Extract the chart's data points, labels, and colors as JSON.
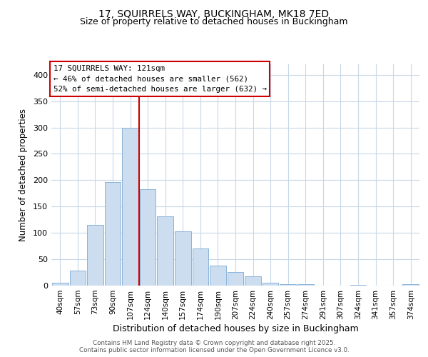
{
  "title1": "17, SQUIRRELS WAY, BUCKINGHAM, MK18 7ED",
  "title2": "Size of property relative to detached houses in Buckingham",
  "xlabel": "Distribution of detached houses by size in Buckingham",
  "ylabel": "Number of detached properties",
  "bar_labels": [
    "40sqm",
    "57sqm",
    "73sqm",
    "90sqm",
    "107sqm",
    "124sqm",
    "140sqm",
    "157sqm",
    "174sqm",
    "190sqm",
    "207sqm",
    "224sqm",
    "240sqm",
    "257sqm",
    "274sqm",
    "291sqm",
    "307sqm",
    "324sqm",
    "341sqm",
    "357sqm",
    "374sqm"
  ],
  "bar_values": [
    5,
    28,
    115,
    197,
    300,
    183,
    132,
    103,
    70,
    38,
    26,
    17,
    6,
    3,
    3,
    0,
    0,
    1,
    0,
    0,
    3
  ],
  "bar_color": "#ccddf0",
  "bar_edge_color": "#8ab4d8",
  "vline_x": 4.5,
  "vline_color": "#cc0000",
  "annotation_text": "17 SQUIRRELS WAY: 121sqm\n← 46% of detached houses are smaller (562)\n52% of semi-detached houses are larger (632) →",
  "annotation_box_color": "#ffffff",
  "annotation_box_edge": "#cc0000",
  "ylim": [
    0,
    420
  ],
  "yticks": [
    0,
    50,
    100,
    150,
    200,
    250,
    300,
    350,
    400
  ],
  "footer1": "Contains HM Land Registry data © Crown copyright and database right 2025.",
  "footer2": "Contains public sector information licensed under the Open Government Licence v3.0.",
  "bg_color": "#ffffff",
  "plot_bg_color": "#ffffff",
  "grid_color": "#c8d8e8",
  "title1_fontsize": 10,
  "title2_fontsize": 9
}
